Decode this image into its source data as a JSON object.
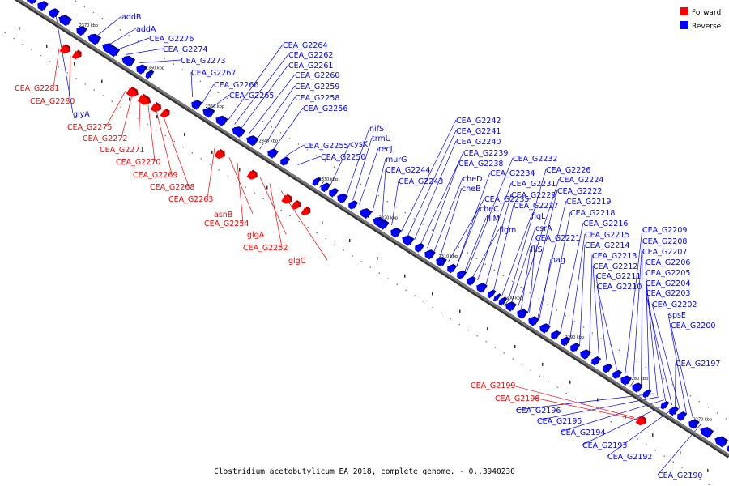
{
  "caption": "Clostridium acetobutylicum EA 2018, complete genome. - 0..3940230",
  "legend": {
    "forward": {
      "label": "Forward",
      "color": "#ff0000"
    },
    "reverse": {
      "label": "Reverse",
      "color": "#0000ff"
    }
  },
  "colors": {
    "backbone": "#777777",
    "leader_forward": "#ff0000",
    "leader_reverse": "#0000ff",
    "tick": "#000000"
  },
  "kbp_markers": [
    "2370 kbp",
    "2360 kbp",
    "2350 kbp",
    "2340 kbp",
    "2330 kbp",
    "2320 kbp",
    "2310 kbp",
    "2300 kbp",
    "2290 kbp",
    "2280 kbp",
    "2270 kbp"
  ],
  "reverse_labels": [
    "addB",
    "addA",
    "CEA_G2276",
    "CEA_G2274",
    "CEA_G2273",
    "glyA",
    "CEA_G2267",
    "CEA_G2266",
    "CEA_G2265",
    "CEA_G2264",
    "CEA_G2262",
    "CEA_G2261",
    "CEA_G2260",
    "CEA_G2259",
    "CEA_G2258",
    "CEA_G2256",
    "nifS",
    "cysK",
    "trmU",
    "recJ",
    "CEA_G2255",
    "CEA_G2250",
    "murG",
    "CEA_G2244",
    "CEA_G2243",
    "CEA_G2242",
    "CEA_G2241",
    "CEA_G2240",
    "CEA_G2239",
    "CEA_G2238",
    "cheD",
    "cheB",
    "CEA_G2235",
    "cheC",
    "fliM",
    "flgm",
    "CEA_G2234",
    "CEA_G2232",
    "CEA_G2231",
    "CEA_G2229",
    "CEA_G2227",
    "flgL",
    "csrA",
    "fliS",
    "CEA_G2221",
    "hag",
    "CEA_G2226",
    "CEA_G2224",
    "CEA_G2222",
    "CEA_G2219",
    "CEA_G2218",
    "CEA_G2216",
    "CEA_G2215",
    "CEA_G2214",
    "CEA_G2213",
    "CEA_G2212",
    "CEA_G2211",
    "CEA_G2210",
    "CEA_G2209",
    "CEA_G2208",
    "CEA_G2207",
    "CEA_G2206",
    "CEA_G2205",
    "CEA_G2204",
    "CEA_G2203",
    "CEA_G2202",
    "spsE",
    "CEA_G2200",
    "CEA_G2197",
    "CEA_G2196",
    "CEA_G2195",
    "CEA_G2194",
    "CEA_G2193",
    "CEA_G2192",
    "CEA_G2190"
  ],
  "forward_labels": [
    "CEA_G2281",
    "CEA_G2280",
    "CEA_G2275",
    "CEA_G2272",
    "CEA_G2271",
    "CEA_G2270",
    "CEA_G2269",
    "CEA_G2268",
    "CEA_G2263",
    "asnB",
    "CEA_G2254",
    "glgA",
    "CEA_G2252",
    "glgC",
    "CEA_G2199",
    "CEA_G2198"
  ]
}
